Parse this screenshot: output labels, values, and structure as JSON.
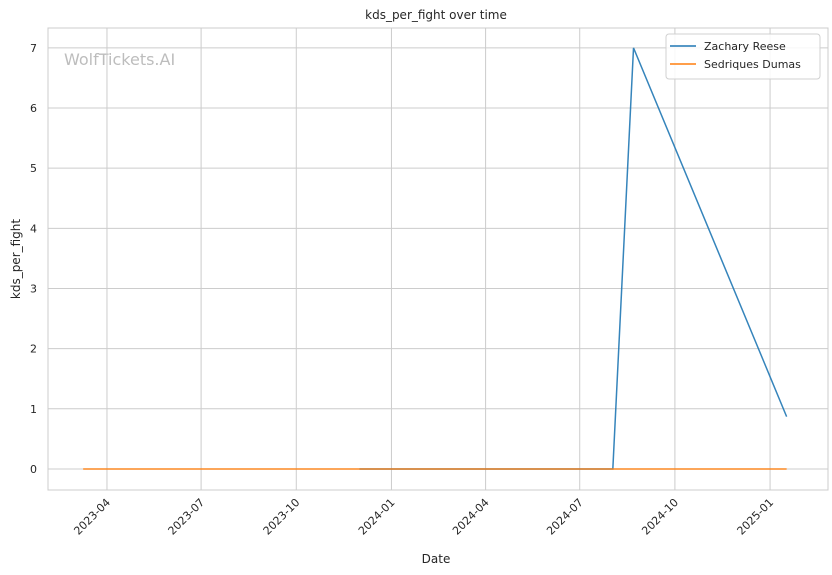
{
  "chart_data": {
    "type": "line",
    "title": "kds_per_fight over time",
    "xlabel": "Date",
    "ylabel": "kds_per_fight",
    "watermark": "WolfTickets.AI",
    "xlim": [
      "2023-02-03",
      "2025-02-26"
    ],
    "ylim": [
      -0.35,
      7.33
    ],
    "x_ticks": [
      "2023-04",
      "2023-07",
      "2023-10",
      "2024-01",
      "2024-04",
      "2024-07",
      "2024-10",
      "2025-01"
    ],
    "y_ticks": [
      0,
      1,
      2,
      3,
      4,
      5,
      6,
      7
    ],
    "grid": true,
    "legend_position": "top-right",
    "series": [
      {
        "name": "Zachary Reese",
        "color": "#1f77b4",
        "x": [
          "2023-12-01",
          "2024-08-02",
          "2024-08-22",
          "2025-01-17"
        ],
        "y": [
          0,
          0,
          7,
          0.87
        ]
      },
      {
        "name": "Sedriques Dumas",
        "color": "#ff7f0e",
        "x": [
          "2023-03-09",
          "2025-01-17"
        ],
        "y": [
          0,
          0
        ]
      }
    ]
  }
}
